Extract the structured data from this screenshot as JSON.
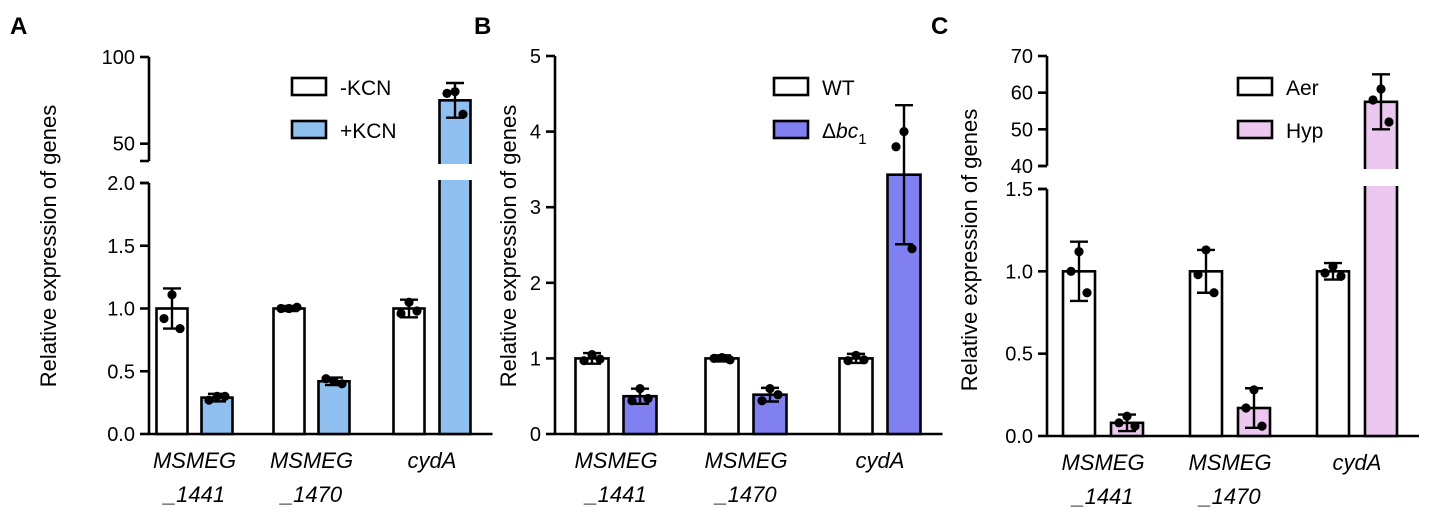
{
  "colors": {
    "white_bar": "#ffffff",
    "kcn": "#90c0f0",
    "bc1": "#8080f0",
    "hyp": "#ecc8f0",
    "point": "#000000"
  },
  "chart_data": [
    {
      "panel": "A",
      "type": "bar",
      "title": "",
      "ylabel": "Relative expression of genes",
      "categories": [
        [
          "MSMEG",
          "_1441"
        ],
        [
          "MSMEG",
          "_1470"
        ],
        [
          "cydA"
        ]
      ],
      "broken_axis": true,
      "lower_ylim": [
        0,
        2.0
      ],
      "lower_ticks": [
        "0.0",
        "0.5",
        "1.0",
        "1.5",
        "2.0"
      ],
      "upper_ylim": [
        40,
        100
      ],
      "upper_ticks": [
        "50",
        "100"
      ],
      "legend_position": "top-right",
      "series": [
        {
          "name": "-KCN",
          "color_key": "white_bar",
          "values": [
            1.0,
            1.0,
            1.0
          ],
          "errors": [
            0.16,
            0.02,
            0.07
          ],
          "points": [
            [
              1.11,
              0.92,
              0.84
            ],
            [
              1.0,
              1.0,
              1.01
            ],
            [
              1.05,
              0.96,
              0.98
            ]
          ]
        },
        {
          "name": "+KCN",
          "color_key": "kcn",
          "values": [
            0.29,
            0.42,
            75
          ],
          "errors": [
            0.03,
            0.03,
            10
          ],
          "points": [
            [
              0.3,
              0.27,
              0.3
            ],
            [
              0.42,
              0.44,
              0.4
            ],
            [
              80,
              79,
              67
            ]
          ]
        }
      ]
    },
    {
      "panel": "B",
      "type": "bar",
      "title": "",
      "ylabel": "Relative expression of genes",
      "categories": [
        [
          "MSMEG",
          "_1441"
        ],
        [
          "MSMEG",
          "_1470"
        ],
        [
          "cydA"
        ]
      ],
      "ylim": [
        0,
        5
      ],
      "ticks": [
        "0",
        "1",
        "2",
        "3",
        "4",
        "5"
      ],
      "legend_position": "top-right",
      "series": [
        {
          "name": "WT",
          "color_key": "white_bar",
          "values": [
            1.0,
            1.0,
            1.0
          ],
          "errors": [
            0.07,
            0.04,
            0.06
          ],
          "points": [
            [
              1.05,
              0.97,
              0.99
            ],
            [
              1.01,
              1.0,
              0.98
            ],
            [
              1.04,
              0.97,
              0.98
            ]
          ]
        },
        {
          "name": "Δbc1",
          "legend_parts": [
            "Δ",
            "bc",
            "1"
          ],
          "color_key": "bc1",
          "values": [
            0.5,
            0.52,
            3.43
          ],
          "errors": [
            0.1,
            0.09,
            0.92
          ],
          "points": [
            [
              0.6,
              0.44,
              0.47
            ],
            [
              0.6,
              0.44,
              0.52
            ],
            [
              4.0,
              3.8,
              2.45
            ]
          ]
        }
      ]
    },
    {
      "panel": "C",
      "type": "bar",
      "title": "",
      "ylabel": "Relative expression of genes",
      "categories": [
        [
          "MSMEG",
          "_1441"
        ],
        [
          "MSMEG",
          "_1470"
        ],
        [
          "cydA"
        ]
      ],
      "broken_axis": true,
      "lower_ylim": [
        0,
        1.5
      ],
      "lower_ticks": [
        "0.0",
        "0.5",
        "1.0",
        "1.5"
      ],
      "upper_ylim": [
        40,
        70
      ],
      "upper_ticks": [
        "40",
        "50",
        "60",
        "70"
      ],
      "legend_position": "top-right",
      "series": [
        {
          "name": "Aer",
          "color_key": "white_bar",
          "values": [
            1.0,
            1.0,
            1.0
          ],
          "errors": [
            0.18,
            0.13,
            0.05
          ],
          "points": [
            [
              1.12,
              1.0,
              0.87
            ],
            [
              1.13,
              0.98,
              0.87
            ],
            [
              1.03,
              0.99,
              0.97
            ]
          ]
        },
        {
          "name": "Hyp",
          "color_key": "hyp",
          "values": [
            0.08,
            0.17,
            57.5
          ],
          "errors": [
            0.05,
            0.12,
            7.5
          ],
          "points": [
            [
              0.12,
              0.08,
              0.06
            ],
            [
              0.28,
              0.17,
              0.06
            ],
            [
              61,
              58,
              52
            ]
          ]
        }
      ]
    }
  ]
}
